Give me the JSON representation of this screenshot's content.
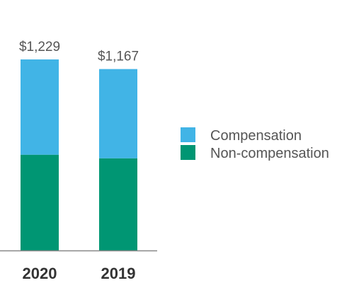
{
  "chart_data": {
    "type": "bar",
    "stacked": true,
    "categories": [
      "2020",
      "2019"
    ],
    "series": [
      {
        "name": "Non-compensation",
        "values": [
          616,
          593
        ],
        "color": "#009673"
      },
      {
        "name": "Compensation",
        "values": [
          613,
          574
        ],
        "color": "#41B4E6"
      }
    ],
    "totals": [
      1229,
      1167
    ],
    "total_labels": [
      "$1,229",
      "$1,167"
    ],
    "ylim": [
      0,
      1229
    ],
    "grid": false,
    "legend": "right",
    "legend_order": [
      "Compensation",
      "Non-compensation"
    ]
  }
}
